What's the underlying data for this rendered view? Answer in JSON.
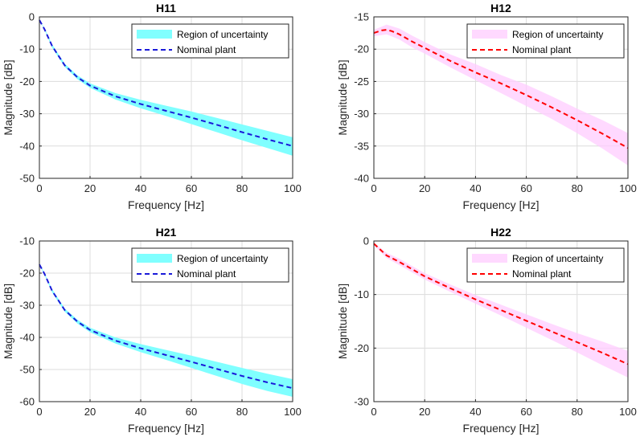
{
  "chart_data": [
    {
      "type": "line",
      "title": "H11",
      "xlabel": "Frequency [Hz]",
      "ylabel": "Magnitude [dB]",
      "xlim": [
        0,
        100
      ],
      "ylim": [
        -50,
        0
      ],
      "xticks": [
        0,
        20,
        40,
        60,
        80,
        100
      ],
      "yticks": [
        0,
        -10,
        -20,
        -30,
        -40,
        -50
      ],
      "grid": true,
      "legend_position": "top-right",
      "band_color": "#80ffff",
      "line_color": "#1a1ad9",
      "series": [
        {
          "name": "Region of uncertainty",
          "kind": "band",
          "x": [
            0,
            2,
            5,
            10,
            15,
            20,
            30,
            40,
            50,
            60,
            70,
            80,
            90,
            100
          ],
          "lower": [
            -1,
            -4,
            -9.5,
            -15.5,
            -19.3,
            -22,
            -25.6,
            -28.3,
            -30.7,
            -33.2,
            -35.7,
            -38.2,
            -40.6,
            -43
          ],
          "upper": [
            -1,
            -3.5,
            -8.5,
            -14.5,
            -18.1,
            -20.6,
            -23.6,
            -25.7,
            -27.5,
            -29.3,
            -31.3,
            -33.3,
            -35.3,
            -37.3
          ]
        },
        {
          "name": "Nominal plant",
          "kind": "line",
          "x": [
            0,
            2,
            5,
            10,
            15,
            20,
            30,
            40,
            50,
            60,
            70,
            80,
            90,
            100
          ],
          "y": [
            -1,
            -3.8,
            -9,
            -15,
            -18.7,
            -21.3,
            -24.6,
            -27,
            -29.1,
            -31.2,
            -33.4,
            -35.7,
            -37.9,
            -40
          ]
        }
      ]
    },
    {
      "type": "line",
      "title": "H12",
      "xlabel": "Frequency [Hz]",
      "ylabel": "Magnitude [dB]",
      "xlim": [
        0,
        100
      ],
      "ylim": [
        -40,
        -15
      ],
      "xticks": [
        0,
        20,
        40,
        60,
        80,
        100
      ],
      "yticks": [
        -15,
        -20,
        -25,
        -30,
        -35,
        -40
      ],
      "grid": true,
      "legend_position": "top-right",
      "band_color": "#ffccff",
      "line_color": "#ff0000",
      "series": [
        {
          "name": "Region of uncertainty",
          "kind": "band",
          "x": [
            0,
            5,
            10,
            15,
            20,
            30,
            40,
            50,
            60,
            70,
            80,
            90,
            100
          ],
          "lower": [
            -18,
            -17.7,
            -18.5,
            -19.7,
            -20.7,
            -22.8,
            -24.8,
            -26.8,
            -28.8,
            -30.8,
            -33,
            -35.4,
            -38
          ],
          "upper": [
            -17,
            -16.2,
            -16.8,
            -17.9,
            -18.9,
            -20.8,
            -22.3,
            -24,
            -25.5,
            -27.3,
            -29.2,
            -31,
            -33
          ]
        },
        {
          "name": "Nominal plant",
          "kind": "line",
          "x": [
            0,
            3,
            5,
            7,
            10,
            15,
            20,
            30,
            40,
            50,
            60,
            70,
            80,
            90,
            100
          ],
          "y": [
            -17.5,
            -17.1,
            -17,
            -17.2,
            -17.7,
            -18.8,
            -19.8,
            -21.8,
            -23.6,
            -25.3,
            -27.1,
            -29,
            -31,
            -33.1,
            -35.3
          ]
        }
      ]
    },
    {
      "type": "line",
      "title": "H21",
      "xlabel": "Frequency [Hz]",
      "ylabel": "Magnitude [dB]",
      "xlim": [
        0,
        100
      ],
      "ylim": [
        -60,
        -10
      ],
      "xticks": [
        0,
        20,
        40,
        60,
        80,
        100
      ],
      "yticks": [
        -10,
        -20,
        -30,
        -40,
        -50,
        -60
      ],
      "grid": true,
      "legend_position": "top-right",
      "band_color": "#80ffff",
      "line_color": "#1a1ad9",
      "series": [
        {
          "name": "Region of uncertainty",
          "kind": "band",
          "x": [
            0,
            2,
            5,
            10,
            15,
            20,
            30,
            40,
            50,
            60,
            70,
            80,
            90,
            100
          ],
          "lower": [
            -17.5,
            -20.5,
            -26,
            -32,
            -35.7,
            -38.4,
            -41.9,
            -44.6,
            -47,
            -49.5,
            -52,
            -54.5,
            -56.7,
            -58.5
          ],
          "upper": [
            -17,
            -20,
            -25,
            -31,
            -34.5,
            -37,
            -40,
            -42.1,
            -43.9,
            -45.7,
            -47.6,
            -49.5,
            -51.3,
            -53
          ]
        },
        {
          "name": "Nominal plant",
          "kind": "line",
          "x": [
            0,
            2,
            5,
            10,
            15,
            20,
            30,
            40,
            50,
            60,
            70,
            80,
            90,
            100
          ],
          "y": [
            -17.3,
            -20.2,
            -25.5,
            -31.5,
            -35.1,
            -37.7,
            -41,
            -43.4,
            -45.5,
            -47.6,
            -49.8,
            -52,
            -54,
            -55.8
          ]
        }
      ]
    },
    {
      "type": "line",
      "title": "H22",
      "xlabel": "Frequency [Hz]",
      "ylabel": "Magnitude [dB]",
      "xlim": [
        0,
        100
      ],
      "ylim": [
        -30,
        0
      ],
      "xticks": [
        0,
        20,
        40,
        60,
        80,
        100
      ],
      "yticks": [
        0,
        -10,
        -20,
        -30
      ],
      "grid": true,
      "legend_position": "top-right",
      "band_color": "#ffccff",
      "line_color": "#ff0000",
      "series": [
        {
          "name": "Region of uncertainty",
          "kind": "band",
          "x": [
            0,
            5,
            10,
            20,
            30,
            40,
            50,
            60,
            70,
            80,
            90,
            100
          ],
          "lower": [
            -0.8,
            -3.2,
            -4.5,
            -7.2,
            -9.5,
            -11.7,
            -13.9,
            -16.2,
            -18.5,
            -20.8,
            -23.2,
            -25.5
          ],
          "upper": [
            -0.3,
            -2.2,
            -3.3,
            -6,
            -8.1,
            -10.1,
            -11.9,
            -13.7,
            -15.5,
            -17.2,
            -18.8,
            -20.5
          ]
        },
        {
          "name": "Nominal plant",
          "kind": "line",
          "x": [
            0,
            5,
            10,
            20,
            30,
            40,
            50,
            60,
            70,
            80,
            90,
            100
          ],
          "y": [
            -0.5,
            -2.7,
            -3.9,
            -6.6,
            -8.8,
            -10.9,
            -12.9,
            -14.9,
            -16.9,
            -18.9,
            -20.9,
            -23
          ]
        }
      ]
    }
  ]
}
